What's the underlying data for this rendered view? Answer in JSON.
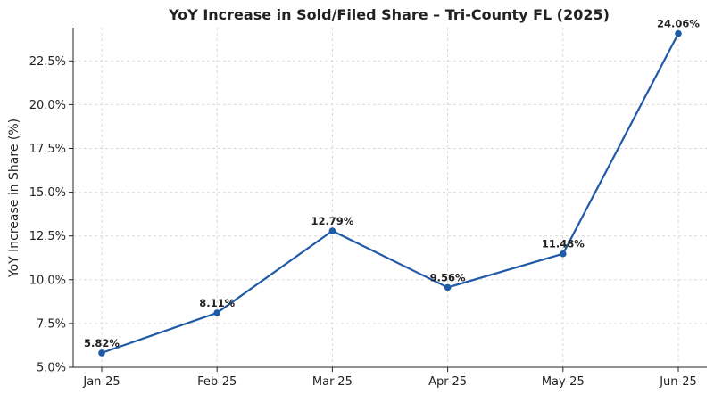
{
  "chart_data": {
    "type": "line",
    "title": "YoY Increase in Sold/Filed Share – Tri-County FL (2025)",
    "xlabel": "",
    "ylabel": "YoY Increase in Share (%)",
    "categories": [
      "Jan-25",
      "Feb-25",
      "Mar-25",
      "Apr-25",
      "May-25",
      "Jun-25"
    ],
    "series": [
      {
        "values": [
          5.82,
          8.11,
          12.79,
          9.56,
          11.48,
          24.06
        ],
        "labels": [
          "5.82%",
          "8.11%",
          "12.79%",
          "9.56%",
          "11.48%",
          "24.06%"
        ],
        "color": "#1f5aa6"
      }
    ],
    "ylim": [
      5.0,
      24.4
    ],
    "yticks": [
      5.0,
      7.5,
      10.0,
      12.5,
      15.0,
      17.5,
      20.0,
      22.5
    ],
    "ytick_labels": [
      "5.0%",
      "7.5%",
      "10.0%",
      "12.5%",
      "15.0%",
      "17.5%",
      "20.0%",
      "22.5%"
    ],
    "grid": true,
    "legend": false
  }
}
